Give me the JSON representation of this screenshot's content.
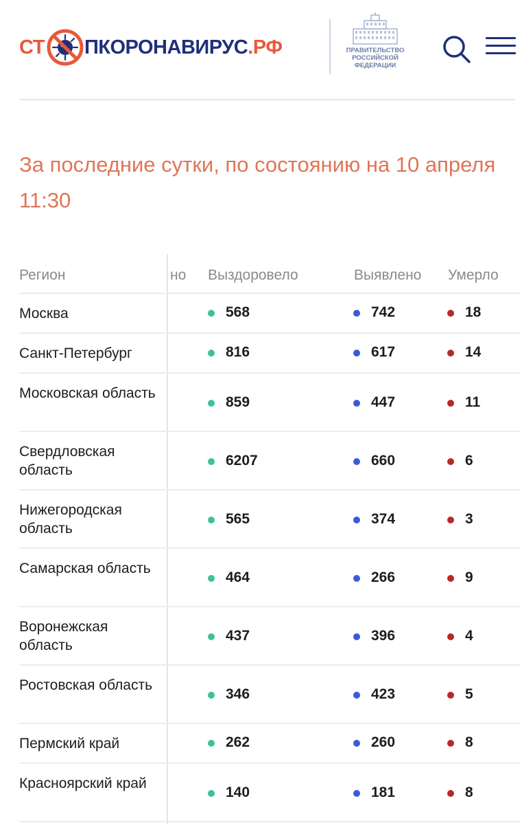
{
  "header": {
    "logo_part1": "СТ",
    "logo_part2": "ПКОРОНАВИРУС",
    "logo_part3": ".РФ",
    "gov_line1": "Правительство",
    "gov_line2": "Российской",
    "gov_line3": "Федерации",
    "search_icon": "search-icon",
    "menu_icon": "hamburger-menu-icon"
  },
  "colors": {
    "accent": "#e8593b",
    "brand": "#1f2f7a",
    "recovered": "#3fbf9f",
    "detected": "#3a5bd9",
    "died": "#b52a2a"
  },
  "title": "За последние сутки, по состоянию на 10 апреля 11:30",
  "table": {
    "headers": {
      "region": "Регион",
      "hidden_fragment": "но",
      "recovered": "Выздоровело",
      "detected": "Выявлено",
      "died": "Умерло"
    },
    "rows": [
      {
        "region": "Москва",
        "recovered": "568",
        "detected": "742",
        "died": "18"
      },
      {
        "region": "Санкт-Петербург",
        "recovered": "816",
        "detected": "617",
        "died": "14"
      },
      {
        "region": "Московская область",
        "recovered": "859",
        "detected": "447",
        "died": "11"
      },
      {
        "region": "Свердловская область",
        "recovered": "6207",
        "detected": "660",
        "died": "6"
      },
      {
        "region": "Нижегородская область",
        "recovered": "565",
        "detected": "374",
        "died": "3"
      },
      {
        "region": "Самарская область",
        "recovered": "464",
        "detected": "266",
        "died": "9"
      },
      {
        "region": "Воронежская область",
        "recovered": "437",
        "detected": "396",
        "died": "4"
      },
      {
        "region": "Ростовская область",
        "recovered": "346",
        "detected": "423",
        "died": "5"
      },
      {
        "region": "Пермский край",
        "recovered": "262",
        "detected": "260",
        "died": "8"
      },
      {
        "region": "Красноярский край",
        "recovered": "140",
        "detected": "181",
        "died": "8"
      }
    ]
  }
}
